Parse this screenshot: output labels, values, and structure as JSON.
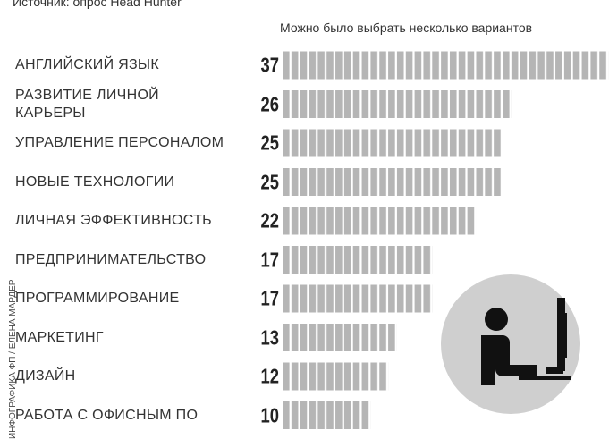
{
  "chart_data": {
    "type": "bar",
    "source": "Источник: опрос Head Hunter",
    "subtitle": "Можно было выбрать несколько вариантов",
    "credit": "ИНФОГРАФИКА ФП / ЕЛЕНА МАРДЕР",
    "categories": [
      "АНГЛИЙСКИЙ ЯЗЫК",
      "РАЗВИТИЕ ЛИЧНОЙ\nКАРЬЕРЫ",
      "УПРАВЛЕНИЕ ПЕРСОНАЛОМ",
      "НОВЫЕ ТЕХНОЛОГИИ",
      "ЛИЧНАЯ ЭФФЕКТИВНОСТЬ",
      "ПРЕДПРИНИМАТЕЛЬСТВО",
      "ПРОГРАММИРОВАНИЕ",
      "МАРКЕТИНГ",
      "ДИЗАЙН",
      "РАБОТА С ОФИСНЫМ ПО"
    ],
    "values": [
      37,
      26,
      25,
      25,
      22,
      17,
      17,
      13,
      12,
      10
    ],
    "color": "#b5b5b5"
  }
}
